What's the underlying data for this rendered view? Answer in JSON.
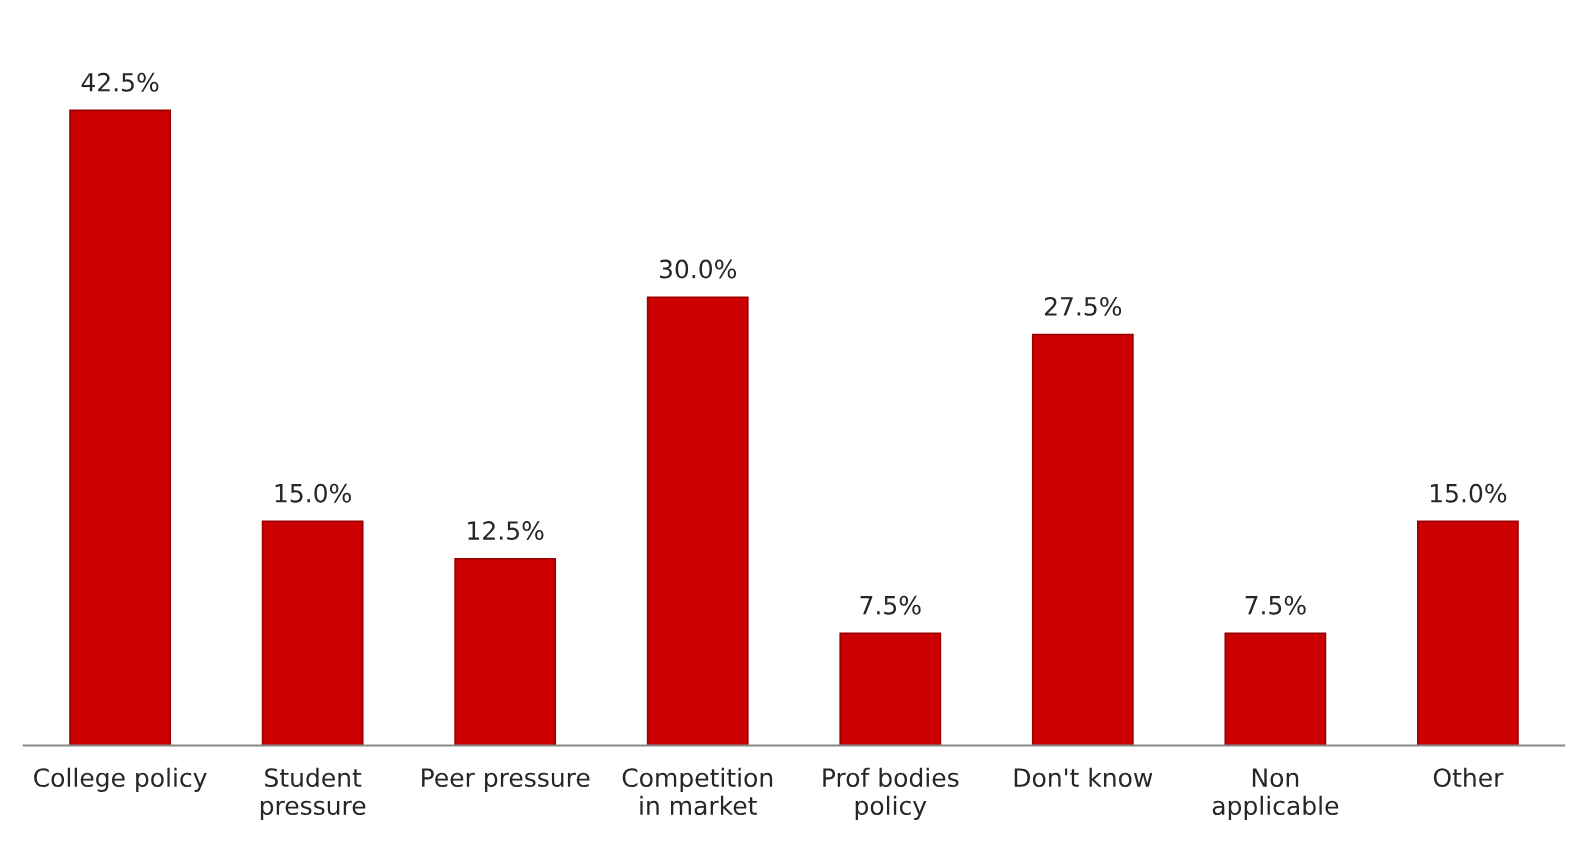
{
  "chart_data": {
    "type": "bar",
    "categories": [
      "College policy",
      "Student\npressure",
      "Peer pressure",
      "Competition\nin market",
      "Prof bodies\npolicy",
      "Don't know",
      "Non\napplicable",
      "Other"
    ],
    "values": [
      42.5,
      15.0,
      12.5,
      30.0,
      7.5,
      27.5,
      7.5,
      15.0
    ],
    "value_labels": [
      "42.5%",
      "15.0%",
      "12.5%",
      "30.0%",
      "7.5%",
      "27.5%",
      "7.5%",
      "15.0%"
    ],
    "color": "#cc0000",
    "tick_labels": "x",
    "grid": false,
    "legend": false
  }
}
